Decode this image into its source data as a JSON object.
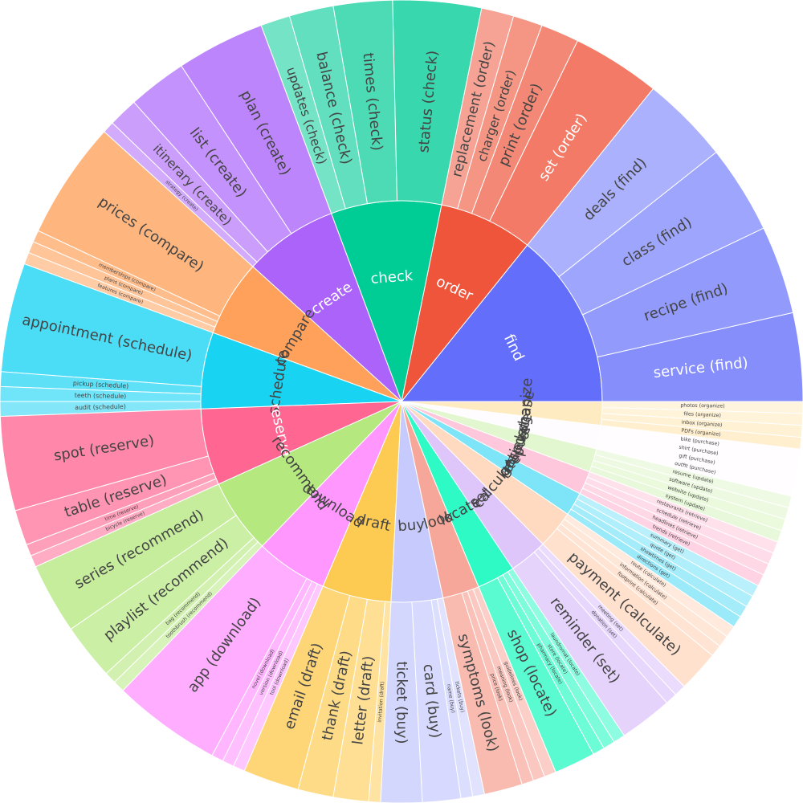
{
  "chart_data": {
    "type": "sunburst",
    "title": "",
    "categories": [
      {
        "name": "find",
        "color": "#636EFA",
        "children": [
          {
            "name": "service (find)",
            "value": 3
          },
          {
            "name": "recipe (find)",
            "value": 3
          },
          {
            "name": "class (find)",
            "value": 3
          },
          {
            "name": "deals (find)",
            "value": 3
          }
        ]
      },
      {
        "name": "order",
        "color": "#EF553B",
        "children": [
          {
            "name": "set (order)",
            "value": 3
          },
          {
            "name": "print (order)",
            "value": 1.3
          },
          {
            "name": "charger (order)",
            "value": 1
          },
          {
            "name": "replacement (order)",
            "value": 1.1
          }
        ]
      },
      {
        "name": "check",
        "color": "#00CC96",
        "children": [
          {
            "name": "status (check)",
            "value": 3
          },
          {
            "name": "times (check)",
            "value": 2
          },
          {
            "name": "balance (check)",
            "value": 1.5
          },
          {
            "name": "updates (check)",
            "value": 1
          }
        ]
      },
      {
        "name": "create",
        "color": "#AB63FA",
        "children": [
          {
            "name": "plan (create)",
            "value": 3
          },
          {
            "name": "list (create)",
            "value": 2
          },
          {
            "name": "itinerary (create)",
            "value": 1
          },
          {
            "name": "strategy (create)",
            "value": 0.4
          }
        ]
      },
      {
        "name": "compare",
        "color": "#FFA15A",
        "children": [
          {
            "name": "prices (compare)",
            "value": 4
          },
          {
            "name": "memberships (compare)",
            "value": 0.4
          },
          {
            "name": "plans (compare)",
            "value": 0.4
          },
          {
            "name": "features (compare)",
            "value": 0.4
          }
        ]
      },
      {
        "name": "schedule",
        "color": "#19D3F3",
        "children": [
          {
            "name": "appointment (schedule)",
            "value": 3.7
          },
          {
            "name": "pickup (schedule)",
            "value": 0.5
          },
          {
            "name": "teeth (schedule)",
            "value": 0.5
          },
          {
            "name": "audit (schedule)",
            "value": 0.5
          }
        ]
      },
      {
        "name": "reserve",
        "color": "#FF6692",
        "children": [
          {
            "name": "spot (reserve)",
            "value": 3.2
          },
          {
            "name": "table (reserve)",
            "value": 1.2
          },
          {
            "name": "time (reserve)",
            "value": 0.4
          },
          {
            "name": "bicycle (reserve)",
            "value": 0.4
          }
        ]
      },
      {
        "name": "recommend",
        "color": "#B6E880",
        "children": [
          {
            "name": "series (recommend)",
            "value": 2.4
          },
          {
            "name": "playlist (recommend)",
            "value": 1.9
          },
          {
            "name": "bag (recommend)",
            "value": 0.4
          },
          {
            "name": "toothbrush (recommend)",
            "value": 0.4
          }
        ]
      },
      {
        "name": "download",
        "color": "#FF97FF",
        "children": [
          {
            "name": "app (download)",
            "value": 3.7
          },
          {
            "name": "novel (download)",
            "value": 0.4
          },
          {
            "name": "version (download)",
            "value": 0.4
          },
          {
            "name": "tool (download)",
            "value": 0.4
          }
        ]
      },
      {
        "name": "draft",
        "color": "#FECB52",
        "children": [
          {
            "name": "email (draft)",
            "value": 1.9
          },
          {
            "name": "thank (draft)",
            "value": 1.2
          },
          {
            "name": "letter (draft)",
            "value": 1.2
          },
          {
            "name": "invitation (draft)",
            "value": 0.4
          }
        ]
      },
      {
        "name": "buy",
        "color": "#C6CAFD",
        "children": [
          {
            "name": "ticket (buy)",
            "value": 1.4
          },
          {
            "name": "card (buy)",
            "value": 1.3
          },
          {
            "name": "name (buy)",
            "value": 0.4
          },
          {
            "name": "tickets (buy)",
            "value": 0.4
          }
        ]
      },
      {
        "name": "look",
        "color": "#F7A799",
        "children": [
          {
            "name": "symptoms (look)",
            "value": 1.3
          },
          {
            "name": "price (look)",
            "value": 0.4
          },
          {
            "name": "meaning (look)",
            "value": 0.4
          },
          {
            "name": "guidelines (look)",
            "value": 0.4
          }
        ]
      },
      {
        "name": "locate",
        "color": "#2DFAC5",
        "children": [
          {
            "name": "shop (locate)",
            "value": 1.4
          },
          {
            "name": "pharmacy (locate)",
            "value": 0.4
          },
          {
            "name": "store (locate)",
            "value": 0.4
          },
          {
            "name": "laundromat (locate)",
            "value": 0.4
          }
        ]
      },
      {
        "name": "set",
        "color": "#DEC6FB",
        "children": [
          {
            "name": "reminder (set)",
            "value": 1.8
          },
          {
            "name": "donation (set)",
            "value": 0.4
          },
          {
            "name": "meeting (set)",
            "value": 0.4
          }
        ]
      },
      {
        "name": "calculate",
        "color": "#FFD9C0",
        "children": [
          {
            "name": "payment (calculate)",
            "value": 1.4
          },
          {
            "name": "footprint (calculate)",
            "value": 0.4
          },
          {
            "name": "information (calculate)",
            "value": 0.4
          },
          {
            "name": "route (calculate)",
            "value": 0.4
          }
        ]
      },
      {
        "name": "get",
        "color": "#7EE4F8",
        "children": [
          {
            "name": "directions (get)",
            "value": 0.4
          },
          {
            "name": "showtimes (get)",
            "value": 0.4
          },
          {
            "name": "quote (get)",
            "value": 0.4
          },
          {
            "name": "summary (get)",
            "value": 0.4
          }
        ]
      },
      {
        "name": "retrieve",
        "color": "#FFC7DB",
        "children": [
          {
            "name": "trends (retrieve)",
            "value": 0.4
          },
          {
            "name": "headlines (retrieve)",
            "value": 0.4
          },
          {
            "name": "schedule (retrieve)",
            "value": 0.4
          },
          {
            "name": "restaurants (retrieve)",
            "value": 0.4
          }
        ]
      },
      {
        "name": "update",
        "color": "#E2F6CF",
        "children": [
          {
            "name": "system (update)",
            "value": 0.4
          },
          {
            "name": "website (update)",
            "value": 0.4
          },
          {
            "name": "software (update)",
            "value": 0.4
          },
          {
            "name": "resume (update)",
            "value": 0.4
          }
        ]
      },
      {
        "name": "purchase",
        "color": "#FFFCFF",
        "children": [
          {
            "name": "outfit (purchase)",
            "value": 0.4
          },
          {
            "name": "gift (purchase)",
            "value": 0.4
          },
          {
            "name": "shirt (purchase)",
            "value": 0.4
          },
          {
            "name": "bike (purchase)",
            "value": 0.4
          }
        ]
      },
      {
        "name": "organize",
        "color": "#FFEBC2",
        "children": [
          {
            "name": "PDFs (organize)",
            "value": 0.4
          },
          {
            "name": "inbox (organize)",
            "value": 0.4
          },
          {
            "name": "files (organize)",
            "value": 0.4
          },
          {
            "name": "photos (organize)",
            "value": 0.4
          }
        ]
      }
    ]
  }
}
